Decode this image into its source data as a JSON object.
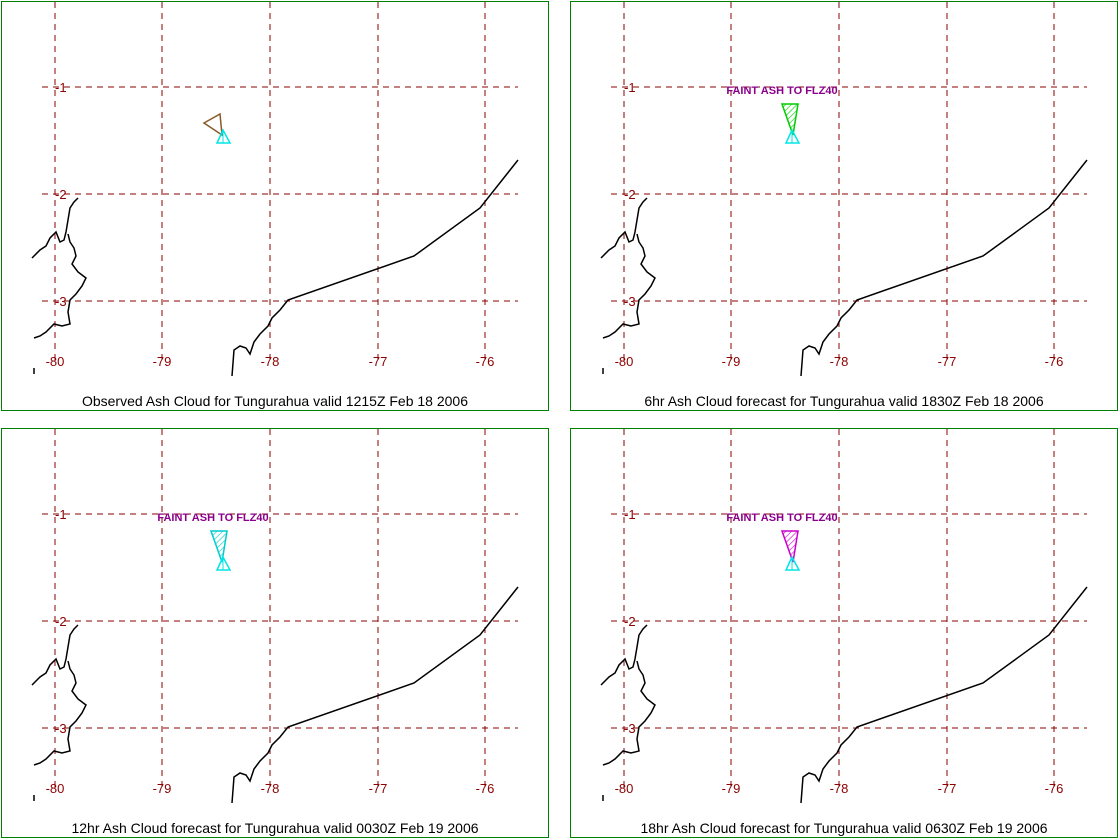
{
  "colors": {
    "panel_border": "#008000",
    "grid": "#8b0000",
    "tick_label": "#8b0000",
    "coast": "#000000",
    "volcano_marker": "#00e5e5",
    "label_text": "#8b008b"
  },
  "lon_labels": [
    "-80",
    "-79",
    "-78",
    "-77",
    "-76"
  ],
  "lat_labels": [
    "-1",
    "-2",
    "-3"
  ],
  "volcano_icon": "triangle-volcano-icon",
  "panels": [
    {
      "caption": "Observed Ash Cloud for Tungurahua valid 1215Z Feb 18 2006",
      "ash_label": "",
      "ash_color": "#8b5a2b",
      "ash_fill": "none"
    },
    {
      "caption": "6hr Ash Cloud forecast for Tungurahua valid 1830Z Feb 18 2006",
      "ash_label": "FAINT ASH TO FLZ40",
      "ash_color": "#00cc00",
      "ash_fill": "hatched"
    },
    {
      "caption": "12hr Ash Cloud forecast for Tungurahua valid 0030Z Feb 19 2006",
      "ash_label": "FAINT ASH TO FLZ40",
      "ash_color": "#00cccc",
      "ash_fill": "hatched"
    },
    {
      "caption": "18hr Ash Cloud forecast for Tungurahua valid 0630Z Feb 19 2006",
      "ash_label": "FAINT ASH TO FLZ40",
      "ash_color": "#cc00cc",
      "ash_fill": "hatched"
    }
  ]
}
